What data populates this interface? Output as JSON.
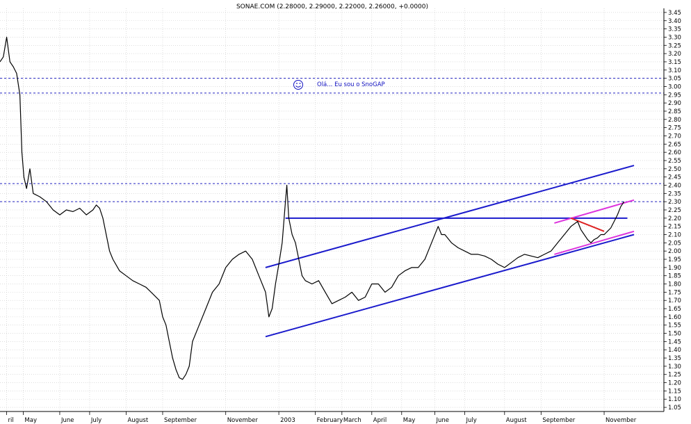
{
  "chart_data": {
    "type": "line",
    "title": "SONAE.COM (2.28000, 2.29000, 2.22000, 2.26000, +0.0000)",
    "annotation": "Olá... Eu sou o SnoGAP",
    "annotation_icon": "smiley-icon",
    "ylim": [
      1.025,
      3.475
    ],
    "y_ticks": [
      "1.05",
      "1.10",
      "1.15",
      "1.20",
      "1.25",
      "1.30",
      "1.35",
      "1.40",
      "1.45",
      "1.50",
      "1.55",
      "1.60",
      "1.65",
      "1.70",
      "1.75",
      "1.80",
      "1.85",
      "1.90",
      "1.95",
      "2.00",
      "2.05",
      "2.10",
      "2.15",
      "2.20",
      "2.25",
      "2.30",
      "2.35",
      "2.40",
      "2.45",
      "2.50",
      "2.55",
      "2.60",
      "2.65",
      "2.70",
      "2.75",
      "2.80",
      "2.85",
      "2.90",
      "2.95",
      "3.00",
      "3.05",
      "3.10",
      "3.15",
      "3.20",
      "3.25",
      "3.30",
      "3.35",
      "3.40",
      "3.45"
    ],
    "x_months": [
      {
        "label": "ril",
        "t": 0.01
      },
      {
        "label": "May",
        "t": 0.035
      },
      {
        "label": "June",
        "t": 0.09
      },
      {
        "label": "July",
        "t": 0.135
      },
      {
        "label": "August",
        "t": 0.19
      },
      {
        "label": "September",
        "t": 0.245
      },
      {
        "label": "November",
        "t": 0.34
      },
      {
        "label": "2003",
        "t": 0.42
      },
      {
        "label": "February",
        "t": 0.475
      },
      {
        "label": "March",
        "t": 0.515
      },
      {
        "label": "April",
        "t": 0.56
      },
      {
        "label": "May",
        "t": 0.605
      },
      {
        "label": "June",
        "t": 0.655
      },
      {
        "label": "July",
        "t": 0.7
      },
      {
        "label": "August",
        "t": 0.76
      },
      {
        "label": "September",
        "t": 0.815
      },
      {
        "label": "November",
        "t": 0.91
      }
    ],
    "price_series": [
      [
        0.0,
        3.15
      ],
      [
        0.005,
        3.18
      ],
      [
        0.01,
        3.3
      ],
      [
        0.015,
        3.15
      ],
      [
        0.02,
        3.12
      ],
      [
        0.025,
        3.08
      ],
      [
        0.03,
        2.95
      ],
      [
        0.033,
        2.6
      ],
      [
        0.036,
        2.45
      ],
      [
        0.04,
        2.38
      ],
      [
        0.045,
        2.5
      ],
      [
        0.05,
        2.35
      ],
      [
        0.06,
        2.33
      ],
      [
        0.07,
        2.3
      ],
      [
        0.08,
        2.25
      ],
      [
        0.09,
        2.22
      ],
      [
        0.1,
        2.25
      ],
      [
        0.11,
        2.24
      ],
      [
        0.12,
        2.26
      ],
      [
        0.13,
        2.22
      ],
      [
        0.14,
        2.25
      ],
      [
        0.145,
        2.28
      ],
      [
        0.15,
        2.26
      ],
      [
        0.155,
        2.2
      ],
      [
        0.16,
        2.1
      ],
      [
        0.165,
        2.0
      ],
      [
        0.17,
        1.95
      ],
      [
        0.18,
        1.88
      ],
      [
        0.19,
        1.85
      ],
      [
        0.2,
        1.82
      ],
      [
        0.21,
        1.8
      ],
      [
        0.22,
        1.78
      ],
      [
        0.23,
        1.74
      ],
      [
        0.24,
        1.7
      ],
      [
        0.245,
        1.6
      ],
      [
        0.25,
        1.55
      ],
      [
        0.255,
        1.45
      ],
      [
        0.26,
        1.35
      ],
      [
        0.265,
        1.28
      ],
      [
        0.27,
        1.23
      ],
      [
        0.275,
        1.22
      ],
      [
        0.28,
        1.25
      ],
      [
        0.285,
        1.3
      ],
      [
        0.29,
        1.45
      ],
      [
        0.3,
        1.55
      ],
      [
        0.31,
        1.65
      ],
      [
        0.32,
        1.75
      ],
      [
        0.33,
        1.8
      ],
      [
        0.34,
        1.9
      ],
      [
        0.35,
        1.95
      ],
      [
        0.36,
        1.98
      ],
      [
        0.37,
        2.0
      ],
      [
        0.38,
        1.95
      ],
      [
        0.39,
        1.85
      ],
      [
        0.4,
        1.75
      ],
      [
        0.405,
        1.6
      ],
      [
        0.41,
        1.65
      ],
      [
        0.415,
        1.8
      ],
      [
        0.42,
        1.92
      ],
      [
        0.425,
        2.05
      ],
      [
        0.43,
        2.3
      ],
      [
        0.432,
        2.4
      ],
      [
        0.435,
        2.2
      ],
      [
        0.44,
        2.1
      ],
      [
        0.445,
        2.05
      ],
      [
        0.45,
        1.95
      ],
      [
        0.455,
        1.85
      ],
      [
        0.46,
        1.82
      ],
      [
        0.47,
        1.8
      ],
      [
        0.48,
        1.82
      ],
      [
        0.49,
        1.75
      ],
      [
        0.5,
        1.68
      ],
      [
        0.51,
        1.7
      ],
      [
        0.52,
        1.72
      ],
      [
        0.53,
        1.75
      ],
      [
        0.54,
        1.7
      ],
      [
        0.55,
        1.72
      ],
      [
        0.56,
        1.8
      ],
      [
        0.57,
        1.8
      ],
      [
        0.58,
        1.75
      ],
      [
        0.59,
        1.78
      ],
      [
        0.6,
        1.85
      ],
      [
        0.61,
        1.88
      ],
      [
        0.62,
        1.9
      ],
      [
        0.63,
        1.9
      ],
      [
        0.64,
        1.95
      ],
      [
        0.65,
        2.05
      ],
      [
        0.66,
        2.15
      ],
      [
        0.665,
        2.1
      ],
      [
        0.67,
        2.1
      ],
      [
        0.68,
        2.05
      ],
      [
        0.69,
        2.02
      ],
      [
        0.7,
        2.0
      ],
      [
        0.71,
        1.98
      ],
      [
        0.72,
        1.98
      ],
      [
        0.73,
        1.97
      ],
      [
        0.74,
        1.95
      ],
      [
        0.75,
        1.92
      ],
      [
        0.76,
        1.9
      ],
      [
        0.77,
        1.93
      ],
      [
        0.78,
        1.96
      ],
      [
        0.79,
        1.98
      ],
      [
        0.8,
        1.97
      ],
      [
        0.81,
        1.96
      ],
      [
        0.82,
        1.98
      ],
      [
        0.83,
        2.0
      ],
      [
        0.84,
        2.05
      ],
      [
        0.85,
        2.1
      ],
      [
        0.86,
        2.15
      ],
      [
        0.87,
        2.18
      ],
      [
        0.875,
        2.13
      ],
      [
        0.88,
        2.1
      ],
      [
        0.885,
        2.07
      ],
      [
        0.89,
        2.05
      ],
      [
        0.895,
        2.07
      ],
      [
        0.9,
        2.08
      ],
      [
        0.905,
        2.1
      ],
      [
        0.91,
        2.1
      ],
      [
        0.915,
        2.12
      ],
      [
        0.92,
        2.14
      ],
      [
        0.925,
        2.18
      ],
      [
        0.93,
        2.22
      ],
      [
        0.935,
        2.27
      ],
      [
        0.94,
        2.3
      ]
    ],
    "horizontal_lines": [
      {
        "y": 3.05,
        "color": "#2020c0",
        "style": "dotted"
      },
      {
        "y": 2.96,
        "color": "#2020c0",
        "style": "dotted"
      },
      {
        "y": 2.41,
        "color": "#2020c0",
        "style": "dotted"
      },
      {
        "y": 2.3,
        "color": "#2020c0",
        "style": "dotted"
      }
    ],
    "trend_lines": [
      {
        "color": "#1a1acc",
        "x1": 0.4,
        "y1": 1.9,
        "x2": 0.955,
        "y2": 2.52
      },
      {
        "color": "#1a1acc",
        "x1": 0.4,
        "y1": 1.48,
        "x2": 0.955,
        "y2": 2.1
      },
      {
        "color": "#1a1acc",
        "x1": 0.43,
        "y1": 2.2,
        "x2": 0.945,
        "y2": 2.2
      },
      {
        "color": "#dd33dd",
        "x1": 0.835,
        "y1": 2.17,
        "x2": 0.955,
        "y2": 2.31
      },
      {
        "color": "#dd33dd",
        "x1": 0.835,
        "y1": 1.98,
        "x2": 0.955,
        "y2": 2.12
      },
      {
        "color": "#dd2222",
        "x1": 0.86,
        "y1": 2.2,
        "x2": 0.91,
        "y2": 2.12
      }
    ],
    "grid": true
  }
}
